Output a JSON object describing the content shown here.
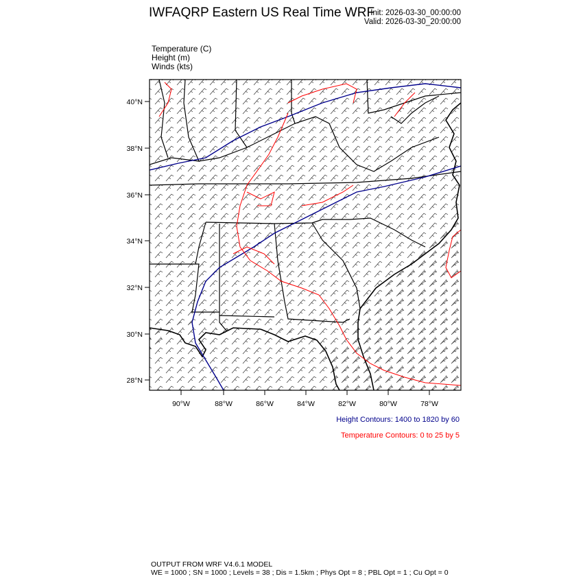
{
  "header": {
    "title": "IWFAQRP Eastern US Real Time WRF",
    "init": "Init: 2026-03-30_00:00:00",
    "valid": "Valid: 2026-03-30_20:00:00"
  },
  "fields": [
    "Temperature   (C)",
    "Height   (m)",
    "Winds   (kts)"
  ],
  "map": {
    "lat_labels": [
      "40°N",
      "38°N",
      "36°N",
      "34°N",
      "32°N",
      "30°N",
      "28°N"
    ],
    "lon_labels": [
      "90°W",
      "88°W",
      "86°W",
      "84°W",
      "82°W",
      "80°W",
      "78°W"
    ],
    "height_color": "#00008b",
    "temperature_color": "#ff0000"
  },
  "legend": {
    "height": "Height Contours: 1400 to 1820 by 60",
    "temperature": "Temperature Contours: 0 to 25 by 5"
  },
  "footer": {
    "line1": "OUTPUT FROM WRF V4.6.1 MODEL",
    "line2": "WE = 1000 ; SN = 1000 ; Levels = 38 ; Dis = 1.5km ; Phys Opt = 8 ; PBL Opt = 1 ; Cu Opt = 0"
  }
}
